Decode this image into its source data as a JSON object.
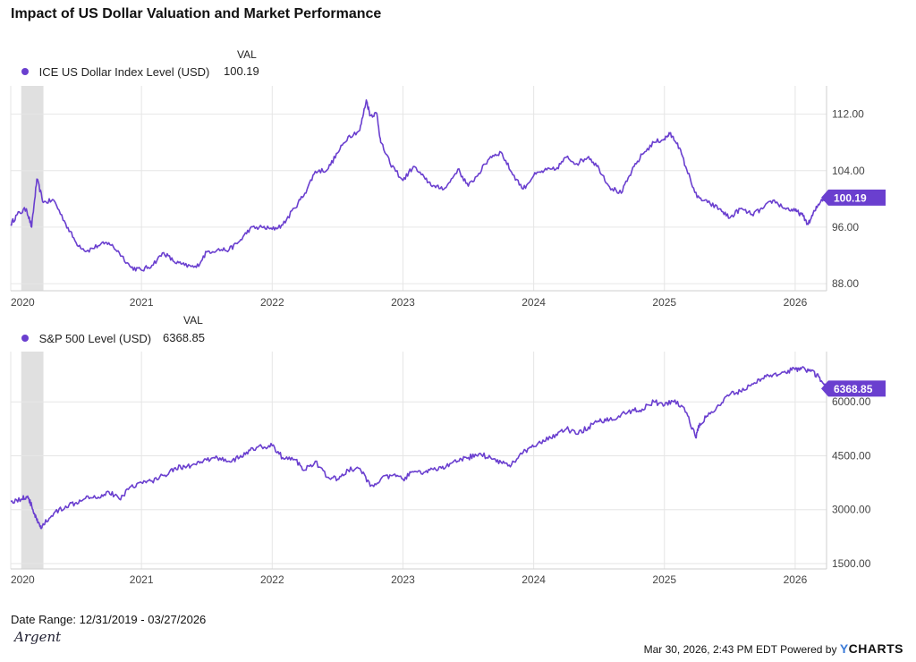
{
  "page_title": "Impact of US Dollar Valuation and Market Performance",
  "footer": {
    "date_range": "Date Range: 12/31/2019 - 03/27/2026",
    "timestamp": "Mar 30, 2026, 2:43 PM EDT Powered by",
    "brand": "CHARTS",
    "brand_y": "Y",
    "logo_text": "Argent"
  },
  "colors": {
    "series": "#6a3fcf",
    "recession": "#e0e0e0",
    "grid": "#e6e6e6"
  },
  "chart_data": [
    {
      "type": "line",
      "value_header": "VAL",
      "series": [
        {
          "name": "ICE US Dollar Index Level (USD)",
          "last_value": "100.19",
          "x": [
            2020.0,
            2020.05,
            2020.12,
            2020.16,
            2020.2,
            2020.25,
            2020.33,
            2020.42,
            2020.5,
            2020.58,
            2020.67,
            2020.75,
            2020.83,
            2020.92,
            2021.0,
            2021.08,
            2021.17,
            2021.25,
            2021.33,
            2021.42,
            2021.5,
            2021.58,
            2021.67,
            2021.75,
            2021.83,
            2021.92,
            2022.0,
            2022.08,
            2022.17,
            2022.25,
            2022.33,
            2022.42,
            2022.5,
            2022.58,
            2022.67,
            2022.72,
            2022.75,
            2022.8,
            2022.83,
            2022.9,
            2023.0,
            2023.08,
            2023.17,
            2023.25,
            2023.33,
            2023.42,
            2023.5,
            2023.58,
            2023.67,
            2023.75,
            2023.83,
            2023.92,
            2024.0,
            2024.08,
            2024.17,
            2024.25,
            2024.33,
            2024.42,
            2024.5,
            2024.58,
            2024.67,
            2024.75,
            2024.83,
            2024.92,
            2025.0,
            2025.04,
            2025.1,
            2025.17,
            2025.25,
            2025.33,
            2025.42,
            2025.5,
            2025.58,
            2025.67,
            2025.75,
            2025.83,
            2025.92,
            2026.0,
            2026.05,
            2026.1,
            2026.15,
            2026.2,
            2026.24
          ],
          "y": [
            96.4,
            97.8,
            98.6,
            96.0,
            102.8,
            99.5,
            99.8,
            96.5,
            93.8,
            92.6,
            93.4,
            93.8,
            92.4,
            90.3,
            89.9,
            90.6,
            92.4,
            91.1,
            90.6,
            90.3,
            92.5,
            92.8,
            92.8,
            94.0,
            95.8,
            96.0,
            95.7,
            96.3,
            98.7,
            100.8,
            103.9,
            104.1,
            106.5,
            108.8,
            109.7,
            114.0,
            111.8,
            112.1,
            108.0,
            105.1,
            102.6,
            104.6,
            102.8,
            101.6,
            101.6,
            104.2,
            101.8,
            103.6,
            106.0,
            106.6,
            103.8,
            101.4,
            103.3,
            104.0,
            104.2,
            105.9,
            105.0,
            106.0,
            104.3,
            101.7,
            100.8,
            103.9,
            106.3,
            108.0,
            108.5,
            109.2,
            107.9,
            104.2,
            100.2,
            99.5,
            98.6,
            97.3,
            98.6,
            97.8,
            98.6,
            99.8,
            98.7,
            98.3,
            97.8,
            96.4,
            98.3,
            99.9,
            100.19
          ]
        }
      ],
      "x_ticks": [
        "2020",
        "2021",
        "2022",
        "2023",
        "2024",
        "2025",
        "2026"
      ],
      "y_ticks": [
        "88.00",
        "96.00",
        "104.00",
        "112.00"
      ],
      "ylim": [
        87.0,
        116.0
      ],
      "xlim": [
        2020.0,
        2026.24
      ],
      "recession": [
        2020.08,
        2020.25
      ]
    },
    {
      "type": "line",
      "value_header": "VAL",
      "series": [
        {
          "name": "S&P 500 Level (USD)",
          "last_value": "6368.85",
          "x": [
            2020.0,
            2020.08,
            2020.13,
            2020.17,
            2020.2,
            2020.23,
            2020.25,
            2020.33,
            2020.42,
            2020.5,
            2020.58,
            2020.67,
            2020.75,
            2020.83,
            2020.92,
            2021.0,
            2021.08,
            2021.17,
            2021.25,
            2021.33,
            2021.42,
            2021.5,
            2021.58,
            2021.67,
            2021.75,
            2021.83,
            2021.92,
            2022.0,
            2022.08,
            2022.17,
            2022.25,
            2022.33,
            2022.42,
            2022.5,
            2022.58,
            2022.67,
            2022.75,
            2022.83,
            2022.92,
            2023.0,
            2023.08,
            2023.17,
            2023.25,
            2023.33,
            2023.42,
            2023.5,
            2023.58,
            2023.67,
            2023.75,
            2023.83,
            2023.92,
            2024.0,
            2024.08,
            2024.17,
            2024.25,
            2024.33,
            2024.42,
            2024.5,
            2024.58,
            2024.67,
            2024.75,
            2024.83,
            2024.92,
            2025.0,
            2025.08,
            2025.17,
            2025.24,
            2025.27,
            2025.33,
            2025.42,
            2025.5,
            2025.58,
            2025.67,
            2025.75,
            2025.83,
            2025.92,
            2026.0,
            2026.05,
            2026.12,
            2026.18,
            2026.24
          ],
          "y": [
            3230,
            3290,
            3380,
            3000,
            2700,
            2480,
            2580,
            2900,
            3100,
            3200,
            3380,
            3350,
            3500,
            3300,
            3650,
            3750,
            3800,
            3950,
            4150,
            4200,
            4250,
            4380,
            4450,
            4350,
            4450,
            4650,
            4750,
            4780,
            4450,
            4400,
            4100,
            4350,
            3900,
            3850,
            4100,
            4150,
            3650,
            3850,
            3950,
            3850,
            4050,
            4050,
            4120,
            4200,
            4350,
            4450,
            4550,
            4450,
            4320,
            4250,
            4600,
            4750,
            4900,
            5100,
            5250,
            5100,
            5300,
            5450,
            5500,
            5650,
            5750,
            5800,
            6000,
            5900,
            6050,
            5700,
            5000,
            5400,
            5600,
            5900,
            6200,
            6300,
            6500,
            6650,
            6750,
            6850,
            6900,
            6950,
            6850,
            6700,
            6368.85
          ]
        }
      ],
      "x_ticks": [
        "2020",
        "2021",
        "2022",
        "2023",
        "2024",
        "2025",
        "2026"
      ],
      "y_ticks": [
        "1500.00",
        "3000.00",
        "4500.00",
        "6000.00"
      ],
      "ylim": [
        1350,
        7400
      ],
      "xlim": [
        2020.0,
        2026.24
      ],
      "recession": [
        2020.08,
        2020.25
      ]
    }
  ]
}
